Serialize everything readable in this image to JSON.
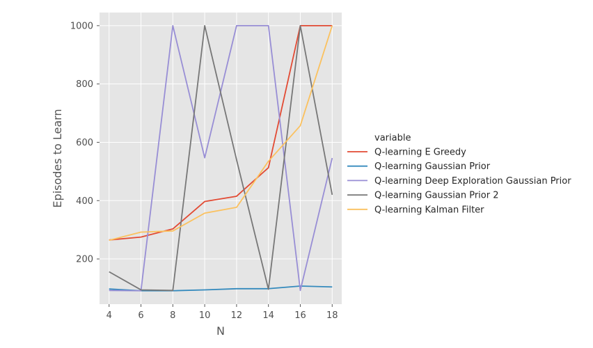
{
  "chart_data": {
    "type": "line",
    "xlabel": "N",
    "ylabel": "Episodes to Learn",
    "x": [
      4,
      6,
      8,
      10,
      12,
      14,
      16,
      18
    ],
    "xticks": [
      4,
      6,
      8,
      10,
      12,
      14,
      16,
      18
    ],
    "yticks": [
      200,
      400,
      600,
      800,
      1000
    ],
    "xlim": [
      3.4,
      18.6
    ],
    "ylim": [
      45,
      1045
    ],
    "grid": true,
    "legend_title": "variable",
    "legend_position": "right",
    "series": [
      {
        "name": "Q-learning E Greedy",
        "color": "#E24A33",
        "values": [
          265,
          275,
          303,
          397,
          415,
          513,
          1000,
          1000
        ]
      },
      {
        "name": "Q-learning Gaussian Prior",
        "color": "#348ABD",
        "values": [
          97,
          91,
          91,
          94,
          98,
          98,
          107,
          104
        ]
      },
      {
        "name": "Q-learning Deep Exploration Gaussian Prior",
        "color": "#988ED5",
        "values": [
          92,
          91,
          1000,
          547,
          1000,
          1000,
          92,
          546
        ]
      },
      {
        "name": "Q-learning Gaussian Prior 2",
        "color": "#777777",
        "values": [
          156,
          94,
          92,
          1000,
          540,
          96,
          1000,
          420
        ]
      },
      {
        "name": "Q-learning Kalman Filter",
        "color": "#FBC15E",
        "values": [
          264,
          292,
          296,
          357,
          377,
          535,
          657,
          1000
        ]
      }
    ]
  }
}
